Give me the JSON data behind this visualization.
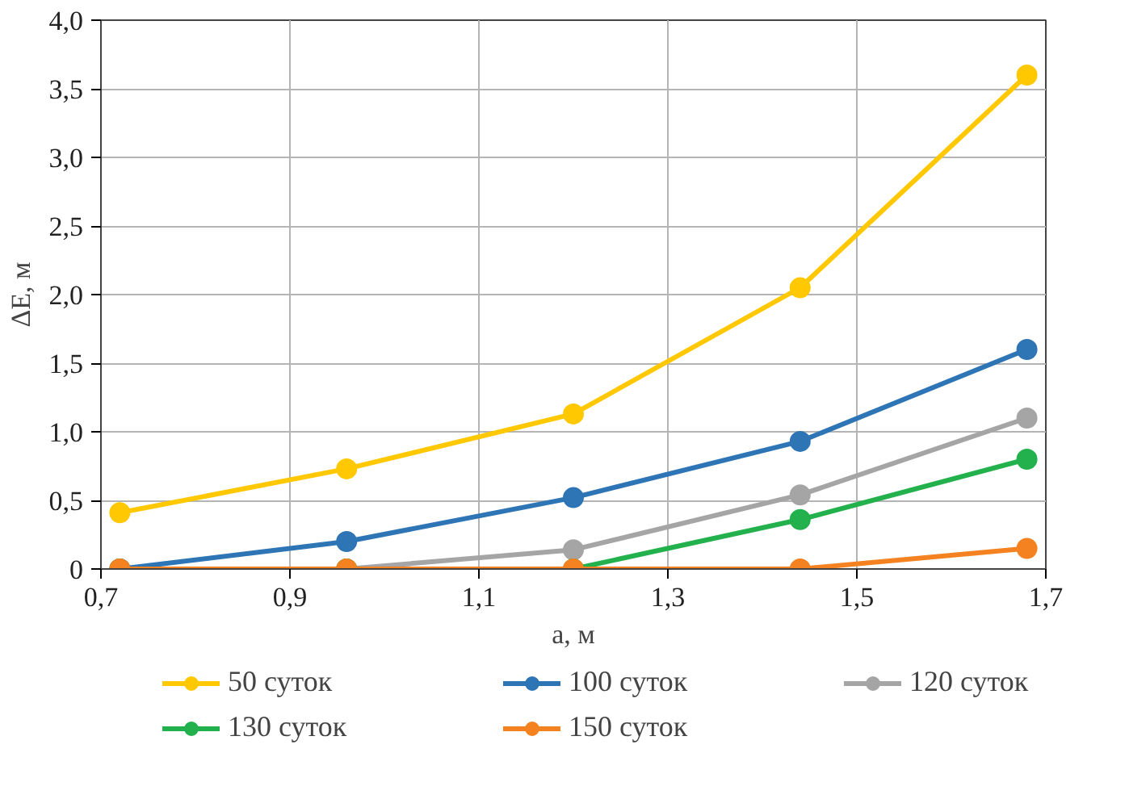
{
  "chart_data": {
    "type": "line",
    "xlabel": "a, м",
    "ylabel": "ΔE, м",
    "x": [
      0.72,
      0.96,
      1.2,
      1.44,
      1.68
    ],
    "series": [
      {
        "name": "50 суток",
        "color": "#ffc800",
        "values": [
          0.41,
          0.73,
          1.13,
          2.05,
          3.6
        ]
      },
      {
        "name": "100 суток",
        "color": "#2e75b6",
        "values": [
          0,
          0.2,
          0.52,
          0.93,
          1.6
        ]
      },
      {
        "name": "120 суток",
        "color": "#a5a5a5",
        "values": [
          0,
          0,
          0.14,
          0.54,
          1.1
        ]
      },
      {
        "name": "130 суток",
        "color": "#22b14c",
        "values": [
          0,
          0,
          0,
          0.36,
          0.8
        ]
      },
      {
        "name": "150 суток",
        "color": "#f58220",
        "values": [
          0,
          0,
          0,
          0,
          0.15
        ]
      }
    ],
    "xlim": [
      0.7,
      1.7
    ],
    "xticks": [
      {
        "value": 0.7,
        "label": "0,7"
      },
      {
        "value": 0.9,
        "label": "0,9"
      },
      {
        "value": 1.1,
        "label": "1,1"
      },
      {
        "value": 1.3,
        "label": "1,3"
      },
      {
        "value": 1.5,
        "label": "1,5"
      },
      {
        "value": 1.7,
        "label": "1,7"
      }
    ],
    "ylim": [
      0,
      4
    ],
    "yticks": [
      0,
      {
        "value": 0.5,
        "label": "0,5"
      },
      {
        "value": 1,
        "label": "1,0"
      },
      {
        "value": 1.5,
        "label": "1,5"
      },
      {
        "value": 2,
        "label": "2,0"
      },
      {
        "value": 2.5,
        "label": "2,5"
      },
      {
        "value": 3,
        "label": "3,0"
      },
      {
        "value": 3.5,
        "label": "3,5"
      },
      {
        "value": 4,
        "label": "4,0"
      }
    ],
    "grid": true,
    "legend": "bottom",
    "marker": "circle",
    "line_style": "solid"
  }
}
